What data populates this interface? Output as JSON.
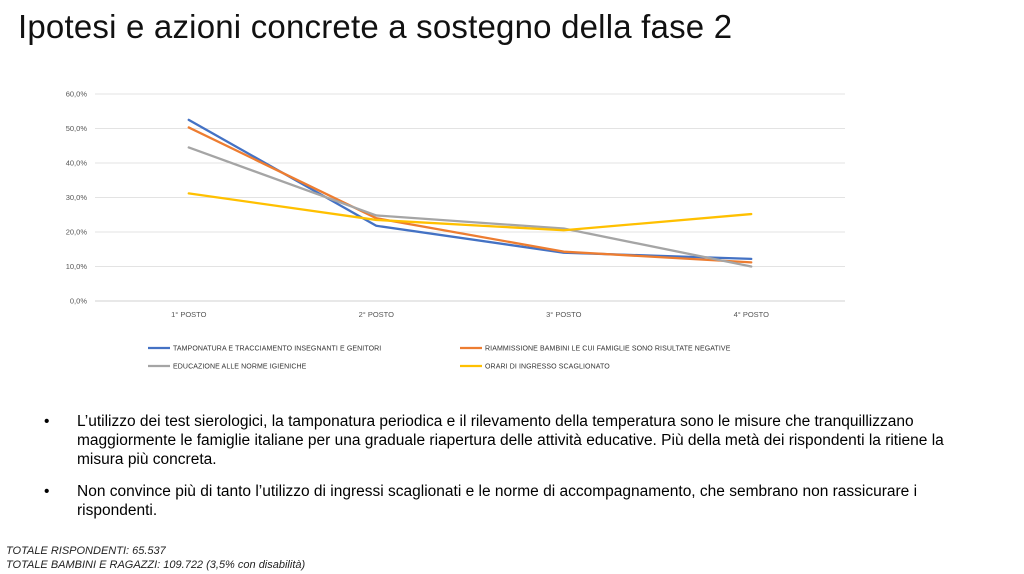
{
  "title": "Ipotesi e azioni concrete a sostegno della fase 2",
  "chart_data": {
    "type": "line",
    "categories": [
      "1° POSTO",
      "2° POSTO",
      "3° POSTO",
      "4° POSTO"
    ],
    "ytick_labels": [
      "0,0%",
      "10,0%",
      "20,0%",
      "30,0%",
      "40,0%",
      "50,0%",
      "60,0%"
    ],
    "ylim": [
      0,
      60
    ],
    "grid": true,
    "legend_position": "bottom",
    "series": [
      {
        "name": "TAMPONATURA E TRACCIAMENTO INSEGNANTI E GENITORI",
        "color": "#4472C4",
        "values": [
          52.5,
          21.8,
          14.0,
          12.2
        ]
      },
      {
        "name": "RIAMMISSIONE BAMBINI LE CUI FAMIGLIE SONO RISULTATE NEGATIVE",
        "color": "#ED7D31",
        "values": [
          50.3,
          24.0,
          14.3,
          11.2
        ]
      },
      {
        "name": "EDUCAZIONE ALLE NORME IGIENICHE",
        "color": "#A5A5A5",
        "values": [
          44.5,
          24.8,
          21.0,
          10.0
        ]
      },
      {
        "name": "ORARI DI INGRESSO SCAGLIONATO",
        "color": "#FFC000",
        "values": [
          31.2,
          23.5,
          20.5,
          25.2
        ]
      }
    ]
  },
  "bullets": [
    {
      "marker": "•",
      "text": "L’utilizzo dei test sierologici, la tamponatura periodica e il rilevamento della temperatura sono le misure che tranquillizzano maggiormente le famiglie italiane per una graduale riapertura delle attività educative. Più della metà dei rispondenti  la ritiene la misura più concreta."
    },
    {
      "marker": "•",
      "text": "Non convince più di tanto l’utilizzo di ingressi scaglionati e le norme di accompagnamento, che sembrano non rassicurare i rispondenti."
    }
  ],
  "footer": {
    "line1": "TOTALE RISPONDENTI: 65.537",
    "line2": "TOTALE BAMBINI E RAGAZZI: 109.722  (3,5% con disabilità)"
  }
}
